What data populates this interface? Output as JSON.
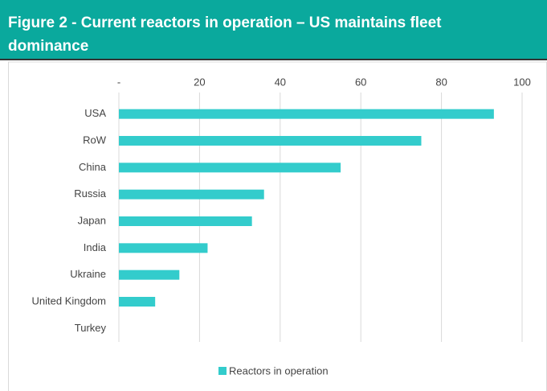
{
  "chart_data": {
    "type": "hbar",
    "title": "Figure 2 - Current reactors in operation – US maintains fleet dominance",
    "categories": [
      "USA",
      "RoW",
      "China",
      "Russia",
      "Japan",
      "India",
      "Ukraine",
      "United Kingdom",
      "Turkey"
    ],
    "series": [
      {
        "name": "Reactors in operation",
        "color": "#33cccc",
        "values": [
          93,
          75,
          55,
          36,
          33,
          22,
          15,
          9,
          0
        ]
      }
    ],
    "xlim": [
      0,
      100
    ],
    "xticks": [
      {
        "value": 0,
        "label": "-"
      },
      20,
      40,
      60,
      80,
      100
    ],
    "grid": true,
    "legend": "bottom"
  }
}
